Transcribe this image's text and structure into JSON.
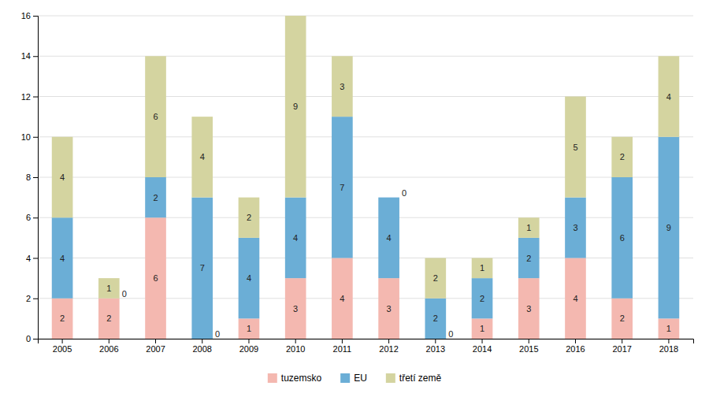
{
  "chart_data": {
    "type": "bar",
    "stacked": true,
    "categories": [
      "2005",
      "2006",
      "2007",
      "2008",
      "2009",
      "2010",
      "2011",
      "2012",
      "2013",
      "2014",
      "2015",
      "2016",
      "2017",
      "2018"
    ],
    "series": [
      {
        "name": "tuzemsko",
        "color": "#f4b8b0",
        "values": [
          2,
          2,
          6,
          0,
          1,
          3,
          4,
          3,
          0,
          1,
          3,
          4,
          2,
          1
        ]
      },
      {
        "name": "EU",
        "color": "#6baed6",
        "values": [
          4,
          0,
          2,
          7,
          4,
          4,
          7,
          4,
          2,
          2,
          2,
          3,
          6,
          9
        ]
      },
      {
        "name": "třetí země",
        "color": "#d4d4a0",
        "values": [
          4,
          1,
          6,
          4,
          2,
          9,
          3,
          0,
          2,
          1,
          1,
          5,
          2,
          4
        ]
      }
    ],
    "ylim": [
      0,
      16
    ],
    "yticks": [
      0,
      2,
      4,
      6,
      8,
      10,
      12,
      14,
      16
    ],
    "grid": true,
    "legend": "bottom",
    "data_labels": true
  }
}
